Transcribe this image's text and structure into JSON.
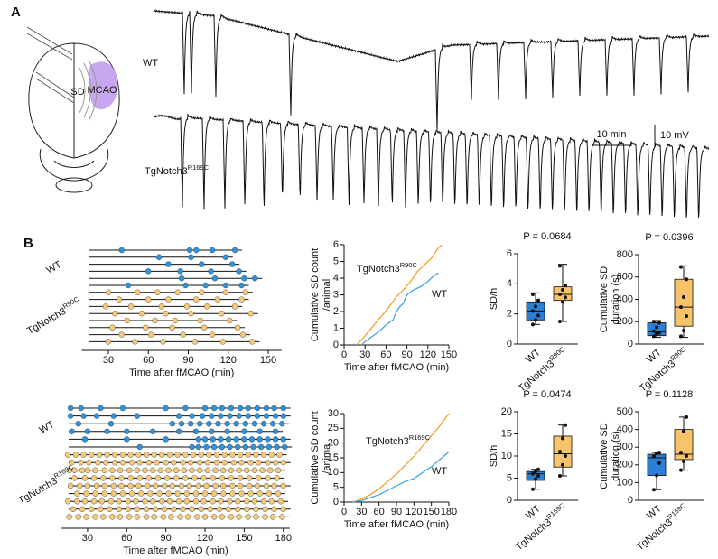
{
  "panel_a": {
    "label": "A",
    "wt_label": "WT",
    "tg_label": "TgNotch3R169C",
    "sd": "SD",
    "mcao": "MCAO",
    "time_scale": "10 min",
    "voltage_scale": "10 mV"
  },
  "panel_b_label": "B",
  "chart_data": [
    {
      "type": "raster",
      "xlabel": "Time after fMCAO (min)",
      "xlim": [
        10,
        160
      ],
      "xticks": [
        30,
        60,
        90,
        120,
        150
      ],
      "groups": [
        {
          "name": "WT",
          "color": "#2f93dc",
          "rows": [
            [
              40,
              91,
              96,
              108,
              125
            ],
            [
              68,
              92,
              118
            ],
            [
              75,
              100,
              123
            ],
            [
              60,
              84,
              107,
              128
            ],
            [
              85,
              110,
              132,
              140
            ],
            [
              45,
              88,
              103,
              118,
              130
            ]
          ]
        },
        {
          "name": "TgNotch3R90C",
          "color": "#f6c878",
          "rows": [
            [
              30,
              52,
              67,
              82,
              100,
              118,
              133
            ],
            [
              38,
              60,
              75,
              96,
              112,
              130
            ],
            [
              28,
              47,
              70,
              89,
              104,
              125
            ],
            [
              35,
              55,
              73,
              92,
              115,
              137
            ],
            [
              44,
              65,
              80,
              99,
              121
            ],
            [
              33,
              58,
              78,
              102,
              127
            ],
            [
              40,
              62,
              86,
              108,
              131
            ],
            [
              30,
              50,
              71,
              95,
              116,
              138
            ]
          ]
        }
      ]
    },
    {
      "type": "line",
      "xlabel": "Time after fMCAO (min)",
      "ylabel": [
        "Cumulative SD count",
        "/animal"
      ],
      "xlim": [
        0,
        150
      ],
      "xticks": [
        0,
        30,
        60,
        90,
        120,
        150
      ],
      "ylim": [
        0,
        6
      ],
      "yticks": [
        0,
        1,
        2,
        3,
        4,
        5,
        6
      ],
      "series": [
        {
          "name": "TgNotch3R90C",
          "color": "#f39a1e",
          "x": [
            18,
            25,
            35,
            45,
            55,
            65,
            75,
            85,
            95,
            105,
            115,
            125,
            135,
            140
          ],
          "values": [
            0,
            0.3,
            0.8,
            1.3,
            1.8,
            2.3,
            2.9,
            3.3,
            3.8,
            4.4,
            4.8,
            5.2,
            5.8,
            6.0
          ]
        },
        {
          "name": "WT",
          "color": "#3aa0e2",
          "x": [
            25,
            30,
            40,
            50,
            60,
            70,
            75,
            80,
            85,
            90,
            100,
            110,
            120,
            130,
            135
          ],
          "values": [
            0,
            0.2,
            0.5,
            0.8,
            1.2,
            1.5,
            2.0,
            2.3,
            2.5,
            3.0,
            3.3,
            3.5,
            3.8,
            4.2,
            4.3
          ]
        }
      ]
    },
    {
      "type": "box",
      "title": "P = 0.0684",
      "ylabel": "SD/h",
      "ylim": [
        0,
        6
      ],
      "yticks": [
        0,
        2,
        4,
        6
      ],
      "categories": [
        "WT",
        "TgNotch3R90C"
      ],
      "boxes": [
        {
          "color": "#2b80d6",
          "min": 1.3,
          "q1": 1.6,
          "median": 2.2,
          "q3": 2.8,
          "max": 3.4,
          "points": [
            1.3,
            1.6,
            1.9,
            2.2,
            2.5,
            2.9,
            3.3
          ]
        },
        {
          "color": "#f7c46c",
          "min": 1.5,
          "q1": 2.9,
          "median": 3.3,
          "q3": 3.8,
          "max": 5.3,
          "points": [
            1.5,
            2.8,
            3.1,
            3.3,
            3.6,
            3.9,
            5.2
          ]
        }
      ]
    },
    {
      "type": "box",
      "title": "P = 0.0396",
      "ylabel": [
        "Cumulative SD",
        "duration (s)"
      ],
      "ylim": [
        0,
        800
      ],
      "yticks": [
        0,
        200,
        400,
        600,
        800
      ],
      "categories": [
        "WT",
        "TgNotch3R90C"
      ],
      "boxes": [
        {
          "color": "#2b80d6",
          "min": 60,
          "q1": 75,
          "median": 110,
          "q3": 190,
          "max": 210,
          "points": [
            70,
            90,
            100,
            115,
            150,
            190,
            200
          ]
        },
        {
          "color": "#f7c46c",
          "min": 60,
          "q1": 160,
          "median": 330,
          "q3": 580,
          "max": 700,
          "points": [
            70,
            120,
            250,
            330,
            420,
            580,
            690
          ]
        }
      ]
    },
    {
      "type": "raster",
      "xlabel": "Time after fMCAO (min)",
      "xlim": [
        10,
        185
      ],
      "xticks": [
        30,
        60,
        90,
        120,
        150,
        180
      ],
      "groups": [
        {
          "name": "WT",
          "color": "#2f93dc",
          "rows": [
            [
              17,
              25,
              40,
              57,
              90,
              105,
              120,
              127,
              133,
              140,
              147,
              153,
              160,
              167,
              173,
              180
            ],
            [
              17,
              27,
              37,
              50,
              68,
              100,
              110,
              118,
              125,
              132,
              139,
              146,
              153,
              160,
              167,
              174,
              180
            ],
            [
              23,
              48,
              95,
              102,
              109,
              116,
              123,
              130,
              137,
              144,
              151,
              158,
              165,
              172,
              179
            ],
            [
              18,
              30,
              45,
              60,
              80,
              100,
              113,
              125,
              137,
              150,
              162,
              174
            ],
            [
              28,
              60,
              90,
              115,
              120,
              126,
              132,
              138,
              144,
              150,
              156,
              162,
              168,
              174,
              180
            ],
            [
              70,
              110,
              115,
              121,
              127,
              133,
              139,
              145,
              151,
              157,
              163,
              169,
              175,
              181
            ]
          ]
        },
        {
          "name": "TgNotch3R169C",
          "color": "#f6c878",
          "rows": [
            [
              15,
              21,
              27,
              33,
              39,
              45,
              51,
              57,
              63,
              69,
              75,
              81,
              87,
              93,
              99,
              105,
              111,
              117,
              123,
              129,
              135,
              141,
              147,
              153,
              159,
              165,
              171,
              177
            ],
            [
              18,
              25,
              31,
              38,
              44,
              51,
              57,
              64,
              70,
              77,
              83,
              90,
              96,
              103,
              109,
              116,
              122,
              129,
              135,
              142,
              148,
              155,
              161,
              168,
              174,
              180
            ],
            [
              16,
              20,
              26,
              30,
              36,
              43,
              49,
              55,
              62,
              68,
              74,
              80,
              86,
              92,
              98,
              104,
              110,
              116,
              122,
              128,
              134,
              140,
              146,
              152,
              158,
              164,
              170,
              176
            ],
            [
              20,
              28,
              35,
              42,
              49,
              56,
              63,
              70,
              77,
              84,
              91,
              98,
              105,
              112,
              119,
              126,
              133,
              140,
              147,
              154,
              161,
              168,
              175
            ],
            [
              17,
              24,
              30,
              37,
              43,
              50,
              56,
              63,
              69,
              76,
              82,
              89,
              95,
              102,
              108,
              115,
              121,
              128,
              134,
              141,
              147,
              154,
              160,
              167,
              173,
              180
            ],
            [
              22,
              29,
              36,
              43,
              50,
              57,
              64,
              71,
              78,
              85,
              92,
              99,
              106,
              113,
              120,
              127,
              134,
              141,
              148,
              155,
              162,
              169,
              176
            ],
            [
              15,
              22,
              28,
              35,
              41,
              48,
              54,
              61,
              67,
              74,
              80,
              87,
              93,
              100,
              106,
              113,
              119,
              126,
              132,
              139,
              145,
              152,
              158,
              165,
              171,
              178
            ],
            [
              19,
              26,
              33,
              40,
              47,
              54,
              61,
              68,
              75,
              82,
              89,
              96,
              103,
              110,
              117,
              124,
              131,
              138,
              145,
              152,
              159,
              166,
              173,
              180
            ],
            [
              16,
              23,
              29,
              36,
              42,
              49,
              55,
              62,
              68,
              75,
              81,
              88,
              94,
              101,
              107,
              114,
              120,
              127,
              133,
              140,
              146,
              153,
              159,
              166,
              172,
              179
            ]
          ]
        }
      ]
    },
    {
      "type": "line",
      "xlabel": "Time after fMCAO (min)",
      "ylabel": [
        "Cumulative SD count",
        "/animal"
      ],
      "xlim": [
        0,
        180
      ],
      "xticks": [
        0,
        30,
        60,
        90,
        120,
        150,
        180
      ],
      "ylim": [
        0,
        30
      ],
      "yticks": [
        0,
        5,
        10,
        15,
        20,
        25,
        30
      ],
      "series": [
        {
          "name": "TgNotch3R169C",
          "color": "#f39a1e",
          "x": [
            15,
            30,
            45,
            60,
            75,
            90,
            105,
            120,
            135,
            150,
            165,
            180
          ],
          "values": [
            0,
            1,
            2.5,
            4.5,
            7,
            9.5,
            12.5,
            15.5,
            19,
            22.5,
            26,
            30
          ]
        },
        {
          "name": "WT",
          "color": "#3aa0e2",
          "x": [
            15,
            30,
            45,
            60,
            75,
            90,
            105,
            120,
            135,
            150,
            165,
            180
          ],
          "values": [
            0,
            0.5,
            1.5,
            2.5,
            4,
            5.5,
            7,
            8,
            10,
            12,
            14.5,
            17
          ]
        }
      ]
    },
    {
      "type": "box",
      "title": "P = 0.0474",
      "ylabel": "SD/h",
      "ylim": [
        0,
        20
      ],
      "yticks": [
        0,
        5,
        10,
        15,
        20
      ],
      "categories": [
        "WT",
        "TgNotch3R169C"
      ],
      "boxes": [
        {
          "color": "#2b80d6",
          "min": 2.5,
          "q1": 4.5,
          "median": 6,
          "q3": 6.5,
          "max": 7,
          "points": [
            2.5,
            4.8,
            5.5,
            6,
            6.5,
            7
          ]
        },
        {
          "color": "#f7c46c",
          "min": 5.5,
          "q1": 7.5,
          "median": 10.5,
          "q3": 14.5,
          "max": 17,
          "points": [
            5.5,
            8,
            10,
            11,
            14,
            17
          ]
        }
      ]
    },
    {
      "type": "box",
      "title": "P = 0.1128",
      "ylabel": [
        "Cumulative SD",
        "duration (s)"
      ],
      "ylim": [
        0,
        500
      ],
      "yticks": [
        0,
        100,
        200,
        300,
        400,
        500
      ],
      "categories": [
        "WT",
        "TgNotch3R169C"
      ],
      "boxes": [
        {
          "color": "#2b80d6",
          "min": 60,
          "q1": 140,
          "median": 240,
          "q3": 260,
          "max": 270,
          "points": [
            60,
            140,
            210,
            250,
            265,
            270
          ]
        },
        {
          "color": "#f7c46c",
          "min": 170,
          "q1": 230,
          "median": 260,
          "q3": 400,
          "max": 470,
          "points": [
            170,
            220,
            250,
            270,
            390,
            470
          ]
        }
      ]
    }
  ]
}
